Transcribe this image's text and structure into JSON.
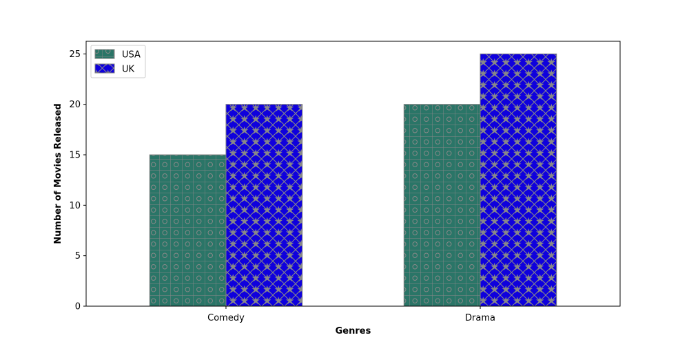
{
  "chart_data": {
    "type": "bar",
    "title": "",
    "xlabel": "Genres",
    "ylabel": "Number of Movies Released",
    "categories": [
      "Comedy",
      "Drama"
    ],
    "series": [
      {
        "name": "USA",
        "values": [
          15,
          20
        ],
        "color": "#2a7567",
        "pattern": "grid-circles"
      },
      {
        "name": "UK",
        "values": [
          20,
          25
        ],
        "color": "#0f00dd",
        "pattern": "diamond-stars"
      }
    ],
    "ylim": [
      0,
      26.25
    ],
    "yticks": [
      0,
      5,
      10,
      15,
      20,
      25
    ],
    "grid": false,
    "legend_position": "upper left",
    "edge_color": "#808080"
  }
}
